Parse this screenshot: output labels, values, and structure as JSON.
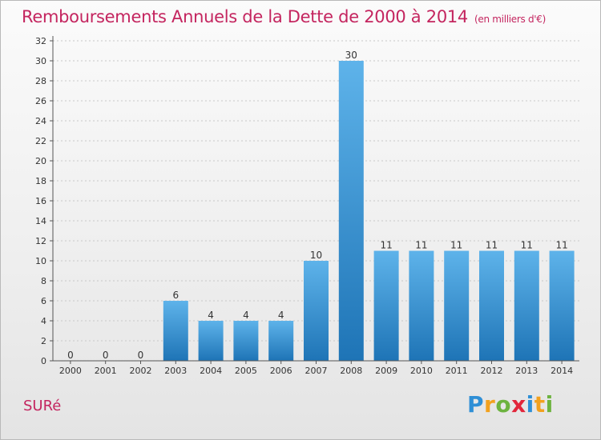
{
  "title": "Remboursements Annuels de la Dette de 2000 à 2014",
  "title_unit": "(en milliers d'€)",
  "commune": "SURé",
  "logo": {
    "text": "Proxiti",
    "letters": [
      {
        "ch": "P",
        "color": "#2f8fd6"
      },
      {
        "ch": "r",
        "color": "#f2a11e"
      },
      {
        "ch": "o",
        "color": "#6db33f"
      },
      {
        "ch": "x",
        "color": "#e2263b"
      },
      {
        "ch": "i",
        "color": "#2f8fd6"
      },
      {
        "ch": "t",
        "color": "#f2a11e"
      },
      {
        "ch": "i",
        "color": "#6db33f"
      }
    ]
  },
  "colors": {
    "accent": "#c4255f",
    "bar_light": "#5eb3ea",
    "bar_dark": "#1e74b6",
    "grid": "#c8c8c8",
    "axis": "#555555"
  },
  "chart_data": {
    "type": "bar",
    "title": "Remboursements Annuels de la Dette de 2000 à 2014",
    "xlabel": "",
    "ylabel": "",
    "categories": [
      "2000",
      "2001",
      "2002",
      "2003",
      "2004",
      "2005",
      "2006",
      "2007",
      "2008",
      "2009",
      "2010",
      "2011",
      "2012",
      "2013",
      "2014"
    ],
    "values": [
      0,
      0,
      0,
      6,
      4,
      4,
      4,
      10,
      30,
      11,
      11,
      11,
      11,
      11,
      11
    ],
    "ylim": [
      0,
      32
    ],
    "yticks": [
      0,
      2,
      4,
      6,
      8,
      10,
      12,
      14,
      16,
      18,
      20,
      22,
      24,
      26,
      28,
      30,
      32
    ],
    "grid": true,
    "data_labels": true
  }
}
